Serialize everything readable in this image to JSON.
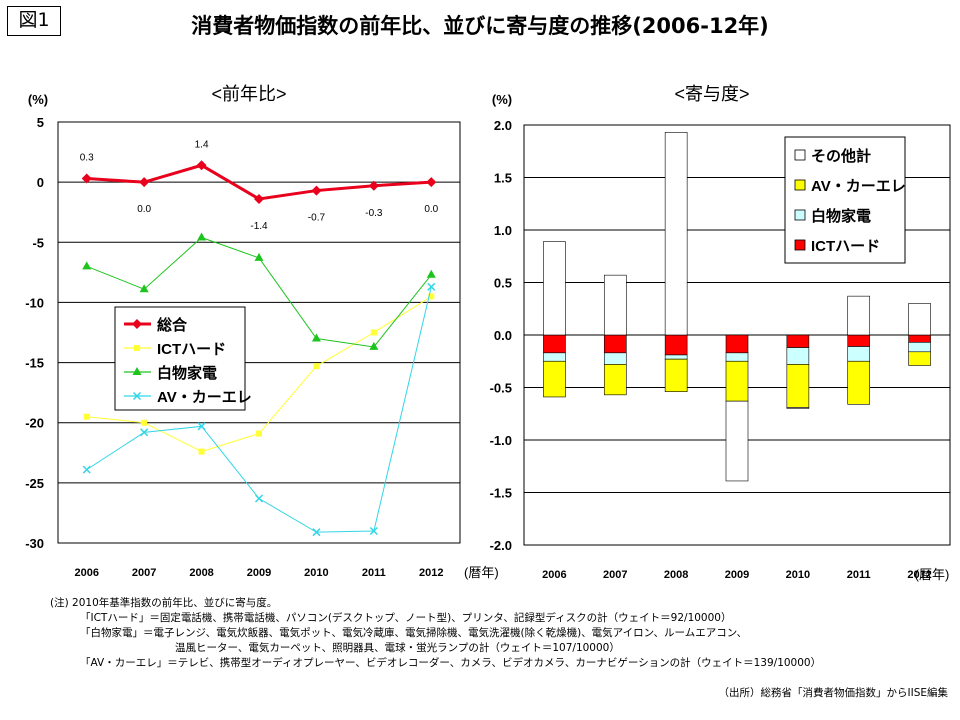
{
  "figure_label": "図1",
  "title": "消費者物価指数の前年比、並びに寄与度の推移(2006-12年)",
  "chart_data": [
    {
      "type": "line",
      "subtitle": "<前年比>",
      "ylabel": "(%)",
      "xlabel": "(暦年)",
      "x": [
        "2006",
        "2007",
        "2008",
        "2009",
        "2010",
        "2011",
        "2012"
      ],
      "ylim": [
        -30,
        5
      ],
      "yticks": [
        5,
        0,
        -5,
        -10,
        -15,
        -20,
        -25,
        -30
      ],
      "series": [
        {
          "name": "総合",
          "color": "#e8001c",
          "marker": "diamond",
          "values": [
            0.3,
            0.0,
            1.4,
            -1.4,
            -0.7,
            -0.3,
            0.0
          ],
          "labels": [
            "0.3",
            "0.0",
            "1.4",
            "-1.4",
            "-0.7",
            "-0.3",
            "0.0"
          ]
        },
        {
          "name": "ICTハード",
          "color": "#ffff33",
          "marker": "square",
          "values": [
            -19.5,
            -20.0,
            -22.4,
            -20.9,
            -15.3,
            -12.5,
            -9.5
          ]
        },
        {
          "name": "白物家電",
          "color": "#1ec41e",
          "marker": "triangle",
          "values": [
            -7.0,
            -8.9,
            -4.6,
            -6.3,
            -13.0,
            -13.7,
            -7.7
          ]
        },
        {
          "name": "AV・カーエレ",
          "color": "#33d6e6",
          "marker": "x",
          "values": [
            -23.9,
            -20.8,
            -20.3,
            -26.3,
            -29.1,
            -29.0,
            -8.7
          ]
        }
      ]
    },
    {
      "type": "bar",
      "stacked": true,
      "subtitle": "<寄与度>",
      "ylabel": "(%)",
      "xlabel": "(暦年)",
      "categories": [
        "2006",
        "2007",
        "2008",
        "2009",
        "2010",
        "2011",
        "2012"
      ],
      "ylim": [
        -2.0,
        2.0
      ],
      "yticks": [
        "2.0",
        "1.5",
        "1.0",
        "0.5",
        "0.0",
        "-0.5",
        "-1.0",
        "-1.5",
        "-2.0"
      ],
      "series": [
        {
          "name": "ICTハード",
          "color": "#ff0000",
          "values": [
            -0.17,
            -0.17,
            -0.19,
            -0.17,
            -0.12,
            -0.11,
            -0.07
          ]
        },
        {
          "name": "白物家電",
          "color": "#ccffff",
          "values": [
            -0.08,
            -0.11,
            -0.04,
            -0.08,
            -0.16,
            -0.14,
            -0.09
          ]
        },
        {
          "name": "AV・カーエレ",
          "color": "#ffff00",
          "values": [
            -0.34,
            -0.29,
            -0.31,
            -0.38,
            -0.41,
            -0.41,
            -0.13
          ]
        },
        {
          "name": "その他計",
          "color": "#ffffff",
          "values": [
            0.89,
            0.57,
            1.93,
            -0.76,
            -0.01,
            0.37,
            0.3
          ]
        }
      ],
      "legend_order": [
        "その他計",
        "AV・カーエレ",
        "白物家電",
        "ICTハード"
      ]
    }
  ],
  "notes": [
    "(注) 2010年基準指数の前年比、並びに寄与度。",
    "「ICTハード」＝固定電話機、携帯電話機、パソコン(デスクトップ、ノート型)、プリンタ、記録型ディスクの計（ウェイト＝92/10000）",
    "「白物家電」＝電子レンジ、電気炊飯器、電気ポット、電気冷蔵庫、電気掃除機、電気洗濯機(除く乾燥機)、電気アイロン、ルームエアコン、",
    "温風ヒーター、電気カーペット、照明器具、電球・蛍光ランプの計（ウェイト＝107/10000）",
    "「AV・カーエレ」＝テレビ、携帯型オーディオプレーヤー、ビデオレコーダー、カメラ、ビデオカメラ、カーナビゲーションの計（ウェイト＝139/10000）"
  ],
  "source": "（出所）総務省「消費者物価指数」からIISE編集"
}
